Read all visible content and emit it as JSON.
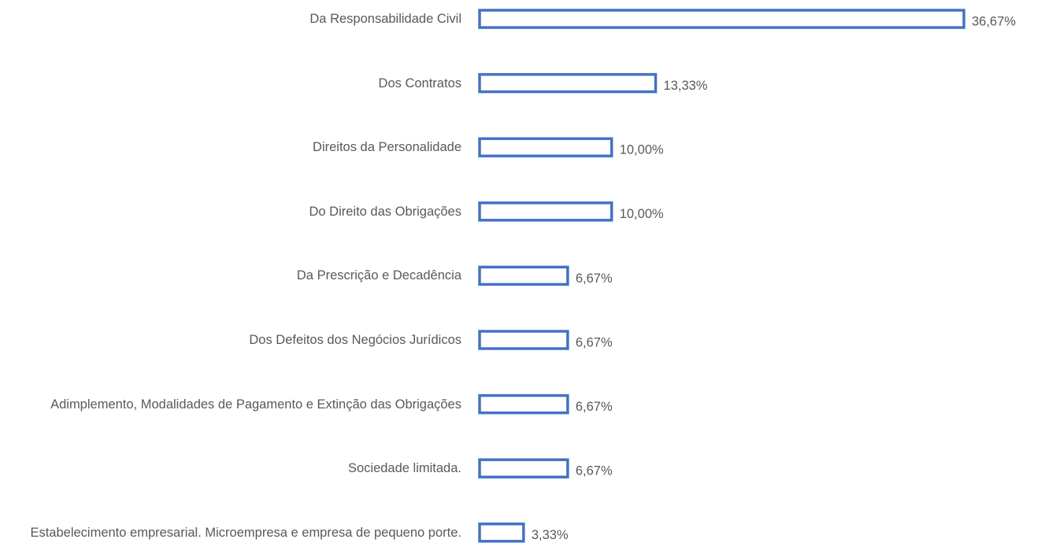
{
  "chart_data": {
    "type": "barh",
    "categories": [
      "Da Responsabilidade Civil",
      "Dos Contratos",
      "Direitos da Personalidade",
      "Do Direito das Obrigações",
      "Da Prescrição e Decadência",
      "Dos Defeitos dos Negócios Jurídicos",
      "Adimplemento, Modalidades de Pagamento e Extinção das Obrigações",
      "Sociedade limitada.",
      "Estabelecimento empresarial. Microempresa e empresa de pequeno porte."
    ],
    "values": [
      36.67,
      13.33,
      10,
      10,
      6.67,
      6.67,
      6.67,
      6.67,
      3.33
    ],
    "value_labels": [
      "36,67%",
      "13,33%",
      "10,00%",
      "10,00%",
      "6,67%",
      "6,67%",
      "6,67%",
      "6,67%",
      "3,33%"
    ],
    "color": "#4472c4"
  }
}
